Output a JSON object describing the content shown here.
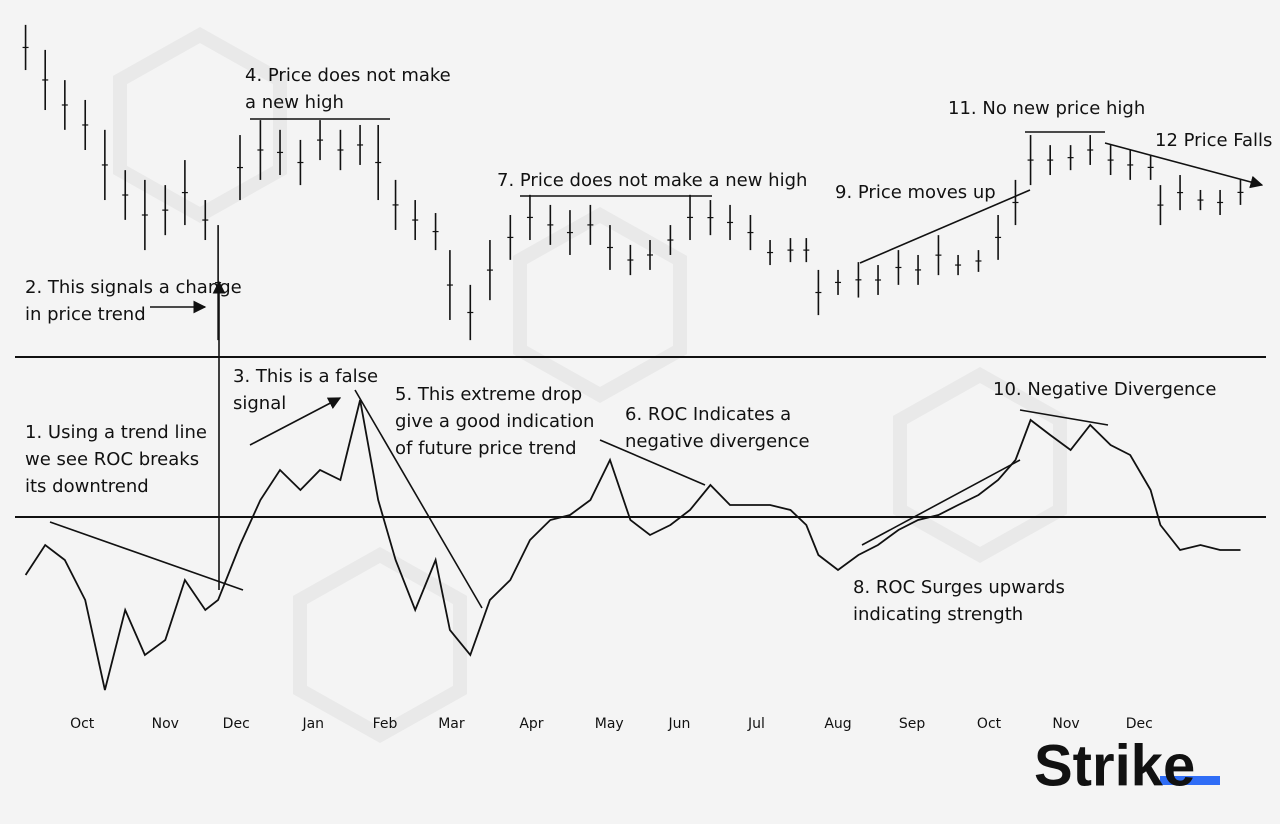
{
  "chart_data": [
    {
      "type": "price-bars",
      "x": [
        -0.75,
        -0.49,
        -0.23,
        0.04,
        0.3,
        0.57,
        0.83,
        1.1,
        1.36,
        1.63,
        1.8,
        2.09,
        2.36,
        2.62,
        2.89,
        3.15,
        3.42,
        3.68,
        3.92,
        4.15,
        4.41,
        4.68,
        4.87,
        5.14,
        5.4,
        5.67,
        5.93,
        6.2,
        6.46,
        6.73,
        6.99,
        7.26,
        7.52,
        7.79,
        8.05,
        8.32,
        8.58,
        8.85,
        9.11,
        9.38,
        9.59,
        9.75,
        10.01,
        10.28,
        10.54,
        10.81,
        11.07,
        11.34,
        11.6,
        11.87,
        12.13,
        12.36,
        12.56,
        12.82,
        13.09,
        13.35,
        13.62,
        13.88,
        14.15,
        14.28,
        14.54,
        14.81,
        15.07,
        15.34
      ],
      "high": [
        98.5,
        90.8,
        81.5,
        75.4,
        66.2,
        53.8,
        50.8,
        49.2,
        56.9,
        44.6,
        36.9,
        64.6,
        69.2,
        66.2,
        63.1,
        69.2,
        66.2,
        67.7,
        67.7,
        50.8,
        44.6,
        40.6,
        29.2,
        18.5,
        32.3,
        40,
        46.2,
        43.1,
        41.5,
        43.1,
        36.9,
        30.8,
        32.3,
        36.9,
        46.2,
        44.6,
        43.1,
        40,
        32.3,
        32.9,
        32.9,
        23.1,
        23.1,
        25.5,
        24.6,
        29.2,
        27.7,
        33.8,
        27.7,
        29.2,
        40,
        50.8,
        64.6,
        61.5,
        61.5,
        64.6,
        61.5,
        60,
        58.5,
        49.2,
        52.3,
        47.7,
        47.7,
        50.8
      ],
      "low": [
        84.6,
        72.3,
        66.2,
        60,
        44.6,
        38.5,
        29.2,
        33.8,
        36.9,
        32.3,
        1.5,
        44.6,
        50.8,
        52.3,
        49.2,
        56.9,
        53.8,
        55.4,
        44.6,
        35.4,
        32.3,
        29.2,
        7.7,
        1.5,
        13.8,
        26.2,
        32.3,
        30.8,
        27.7,
        30.8,
        23.1,
        21.5,
        23.1,
        27.7,
        32.3,
        33.8,
        32.3,
        29.2,
        24.6,
        25.5,
        25.5,
        9.2,
        15.4,
        14.6,
        15.4,
        18.5,
        18.5,
        21.5,
        21.5,
        22.5,
        26.2,
        36.9,
        49.2,
        52.3,
        53.8,
        55.4,
        52.3,
        50.8,
        50.8,
        36.9,
        41.5,
        41.5,
        40,
        43.1
      ],
      "color": "#111111",
      "xlim": [
        -0.89,
        15.4
      ],
      "ylim": [
        0,
        100
      ]
    },
    {
      "type": "line",
      "x": [
        -0.75,
        -0.49,
        -0.23,
        0.04,
        0.3,
        0.57,
        0.83,
        1.1,
        1.36,
        1.63,
        1.8,
        2.09,
        2.36,
        2.62,
        2.89,
        3.15,
        3.42,
        3.68,
        3.92,
        4.15,
        4.41,
        4.68,
        4.87,
        5.14,
        5.4,
        5.67,
        5.93,
        6.2,
        6.46,
        6.73,
        6.99,
        7.26,
        7.52,
        7.79,
        8.05,
        8.32,
        8.58,
        8.85,
        9.11,
        9.38,
        9.59,
        9.75,
        10.01,
        10.28,
        10.54,
        10.81,
        11.07,
        11.34,
        11.6,
        11.87,
        12.13,
        12.36,
        12.56,
        12.82,
        13.09,
        13.35,
        13.62,
        13.88,
        14.15,
        14.28,
        14.54,
        14.81,
        15.07,
        15.34
      ],
      "values": [
        -11.6,
        -5.6,
        -8.6,
        -16.6,
        -34.6,
        -18.6,
        -27.6,
        -24.6,
        -12.6,
        -18.6,
        -16.6,
        -5.6,
        3.4,
        9.4,
        5.4,
        9.4,
        7.4,
        23.4,
        3.4,
        -8.6,
        -18.6,
        -8.6,
        -22.6,
        -27.6,
        -16.6,
        -12.6,
        -4.6,
        -0.6,
        0.4,
        3.4,
        11.4,
        -0.6,
        -3.6,
        -1.6,
        1.4,
        6.4,
        2.4,
        2.4,
        2.4,
        1.4,
        -1.6,
        -7.6,
        -10.6,
        -7.6,
        -5.6,
        -2.6,
        -0.6,
        0.4,
        2.4,
        4.4,
        7.4,
        11.4,
        19.4,
        16.4,
        13.4,
        18.4,
        14.4,
        12.4,
        5.4,
        -1.6,
        -6.6,
        -5.6,
        -6.6,
        -6.6
      ],
      "color": "#111111",
      "xlim": [
        -0.89,
        15.4
      ],
      "ylim": [
        -36.6,
        31.4
      ],
      "xticks": [
        {
          "value": 0,
          "label": "Oct"
        },
        {
          "value": 1.1,
          "label": "Nov"
        },
        {
          "value": 2.04,
          "label": "Dec"
        },
        {
          "value": 3.06,
          "label": "Jan"
        },
        {
          "value": 4.01,
          "label": "Feb"
        },
        {
          "value": 4.89,
          "label": "Mar"
        },
        {
          "value": 5.95,
          "label": "Apr"
        },
        {
          "value": 6.98,
          "label": "May"
        },
        {
          "value": 7.91,
          "label": "Jun"
        },
        {
          "value": 8.93,
          "label": "Jul"
        },
        {
          "value": 10.01,
          "label": "Aug"
        },
        {
          "value": 10.99,
          "label": "Sep"
        },
        {
          "value": 12.01,
          "label": "Oct"
        },
        {
          "value": 13.03,
          "label": "Nov"
        },
        {
          "value": 14.0,
          "label": "Dec"
        }
      ]
    }
  ],
  "annotations": [
    [
      "1. Using a trend line",
      "we see ROC breaks",
      "its downtrend"
    ],
    [
      "2. This signals a change",
      "in price trend"
    ],
    [
      "3. This is a false",
      "signal"
    ],
    [
      "4. Price does not make",
      "a new high"
    ],
    [
      "5. This extreme drop",
      "give a good indication",
      "of future price trend"
    ],
    [
      "6. ROC Indicates a",
      "negative divergence"
    ],
    [
      "7. Price does not make a new high"
    ],
    [
      "8. ROC Surges upwards",
      "indicating strength"
    ],
    [
      "9. Price moves up"
    ],
    [
      "10. Negative Divergence"
    ],
    [
      "11. No new price high"
    ],
    [
      "12 Price Falls"
    ]
  ],
  "logo": "Strike"
}
